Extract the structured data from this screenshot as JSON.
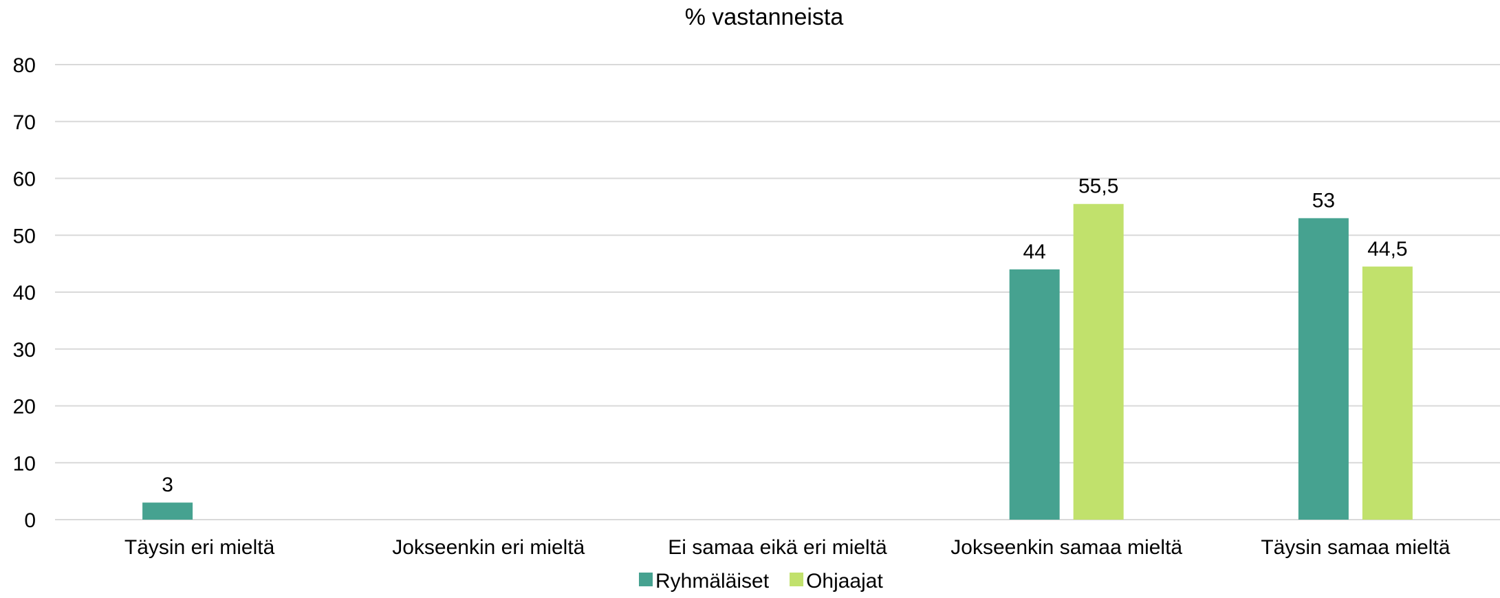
{
  "chart_data": {
    "type": "bar",
    "title": "% vastanneista",
    "xlabel": "",
    "ylabel": "",
    "ylim": [
      0,
      80
    ],
    "yticks": [
      0,
      10,
      20,
      30,
      40,
      50,
      60,
      70,
      80
    ],
    "grid": true,
    "legend_position": "bottom",
    "categories": [
      "Täysin eri mieltä",
      "Jokseenkin eri mieltä",
      "Ei samaa eikä eri mieltä",
      "Jokseenkin samaa mieltä",
      "Täysin samaa mieltä"
    ],
    "series": [
      {
        "name": "Ryhmäläiset",
        "color": "#46a290",
        "values": [
          3,
          null,
          null,
          44,
          53
        ],
        "labels": [
          "3",
          "",
          "",
          "44",
          "53"
        ]
      },
      {
        "name": "Ohjaajat",
        "color": "#c1e16c",
        "values": [
          null,
          null,
          null,
          55.5,
          44.5
        ],
        "labels": [
          "",
          "",
          "",
          "55,5",
          "44,5"
        ]
      }
    ]
  }
}
